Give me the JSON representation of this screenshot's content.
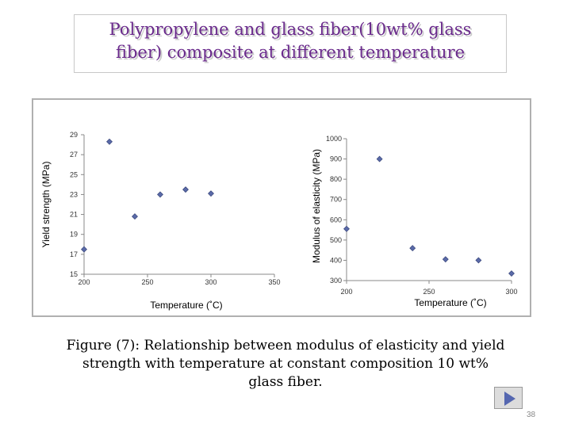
{
  "slide": {
    "title_line1": "Polypropylene and glass fiber(10wt% glass",
    "title_line2": "fiber) composite at different temperature",
    "caption": "Figure (7): Relationship between  modulus of elasticity and yield strength with temperature at constant composition 10 wt% glass fiber.",
    "page_number": "38",
    "accent_color": "#6a2a8c",
    "play_icon": "play-icon"
  },
  "chart_data": [
    {
      "type": "scatter",
      "title": "",
      "xlabel": "Temperature (˚C)",
      "ylabel": "Yield strength (MPa)",
      "xlim": [
        200,
        350
      ],
      "ylim": [
        15,
        29
      ],
      "xticks": [
        "200",
        "250",
        "300",
        "350"
      ],
      "yticks": [
        "15",
        "17",
        "19",
        "21",
        "23",
        "25",
        "27",
        "29"
      ],
      "marker_color": "#5a6aa8",
      "points": [
        {
          "x": 200,
          "y": 17.5
        },
        {
          "x": 220,
          "y": 28.3
        },
        {
          "x": 240,
          "y": 20.8
        },
        {
          "x": 260,
          "y": 23.0
        },
        {
          "x": 280,
          "y": 23.5
        },
        {
          "x": 300,
          "y": 23.1
        }
      ]
    },
    {
      "type": "scatter",
      "title": "",
      "xlabel": "Temperature (˚C)",
      "ylabel": "Modulus of elasticity (MPa)",
      "xlim": [
        200,
        300
      ],
      "ylim": [
        300,
        1000
      ],
      "xticks": [
        "200",
        "250",
        "300"
      ],
      "yticks": [
        "300",
        "400",
        "500",
        "600",
        "700",
        "800",
        "900",
        "1000"
      ],
      "marker_color": "#5a6aa8",
      "points": [
        {
          "x": 200,
          "y": 555
        },
        {
          "x": 220,
          "y": 900
        },
        {
          "x": 240,
          "y": 460
        },
        {
          "x": 260,
          "y": 405
        },
        {
          "x": 280,
          "y": 400
        },
        {
          "x": 300,
          "y": 335
        }
      ]
    }
  ]
}
